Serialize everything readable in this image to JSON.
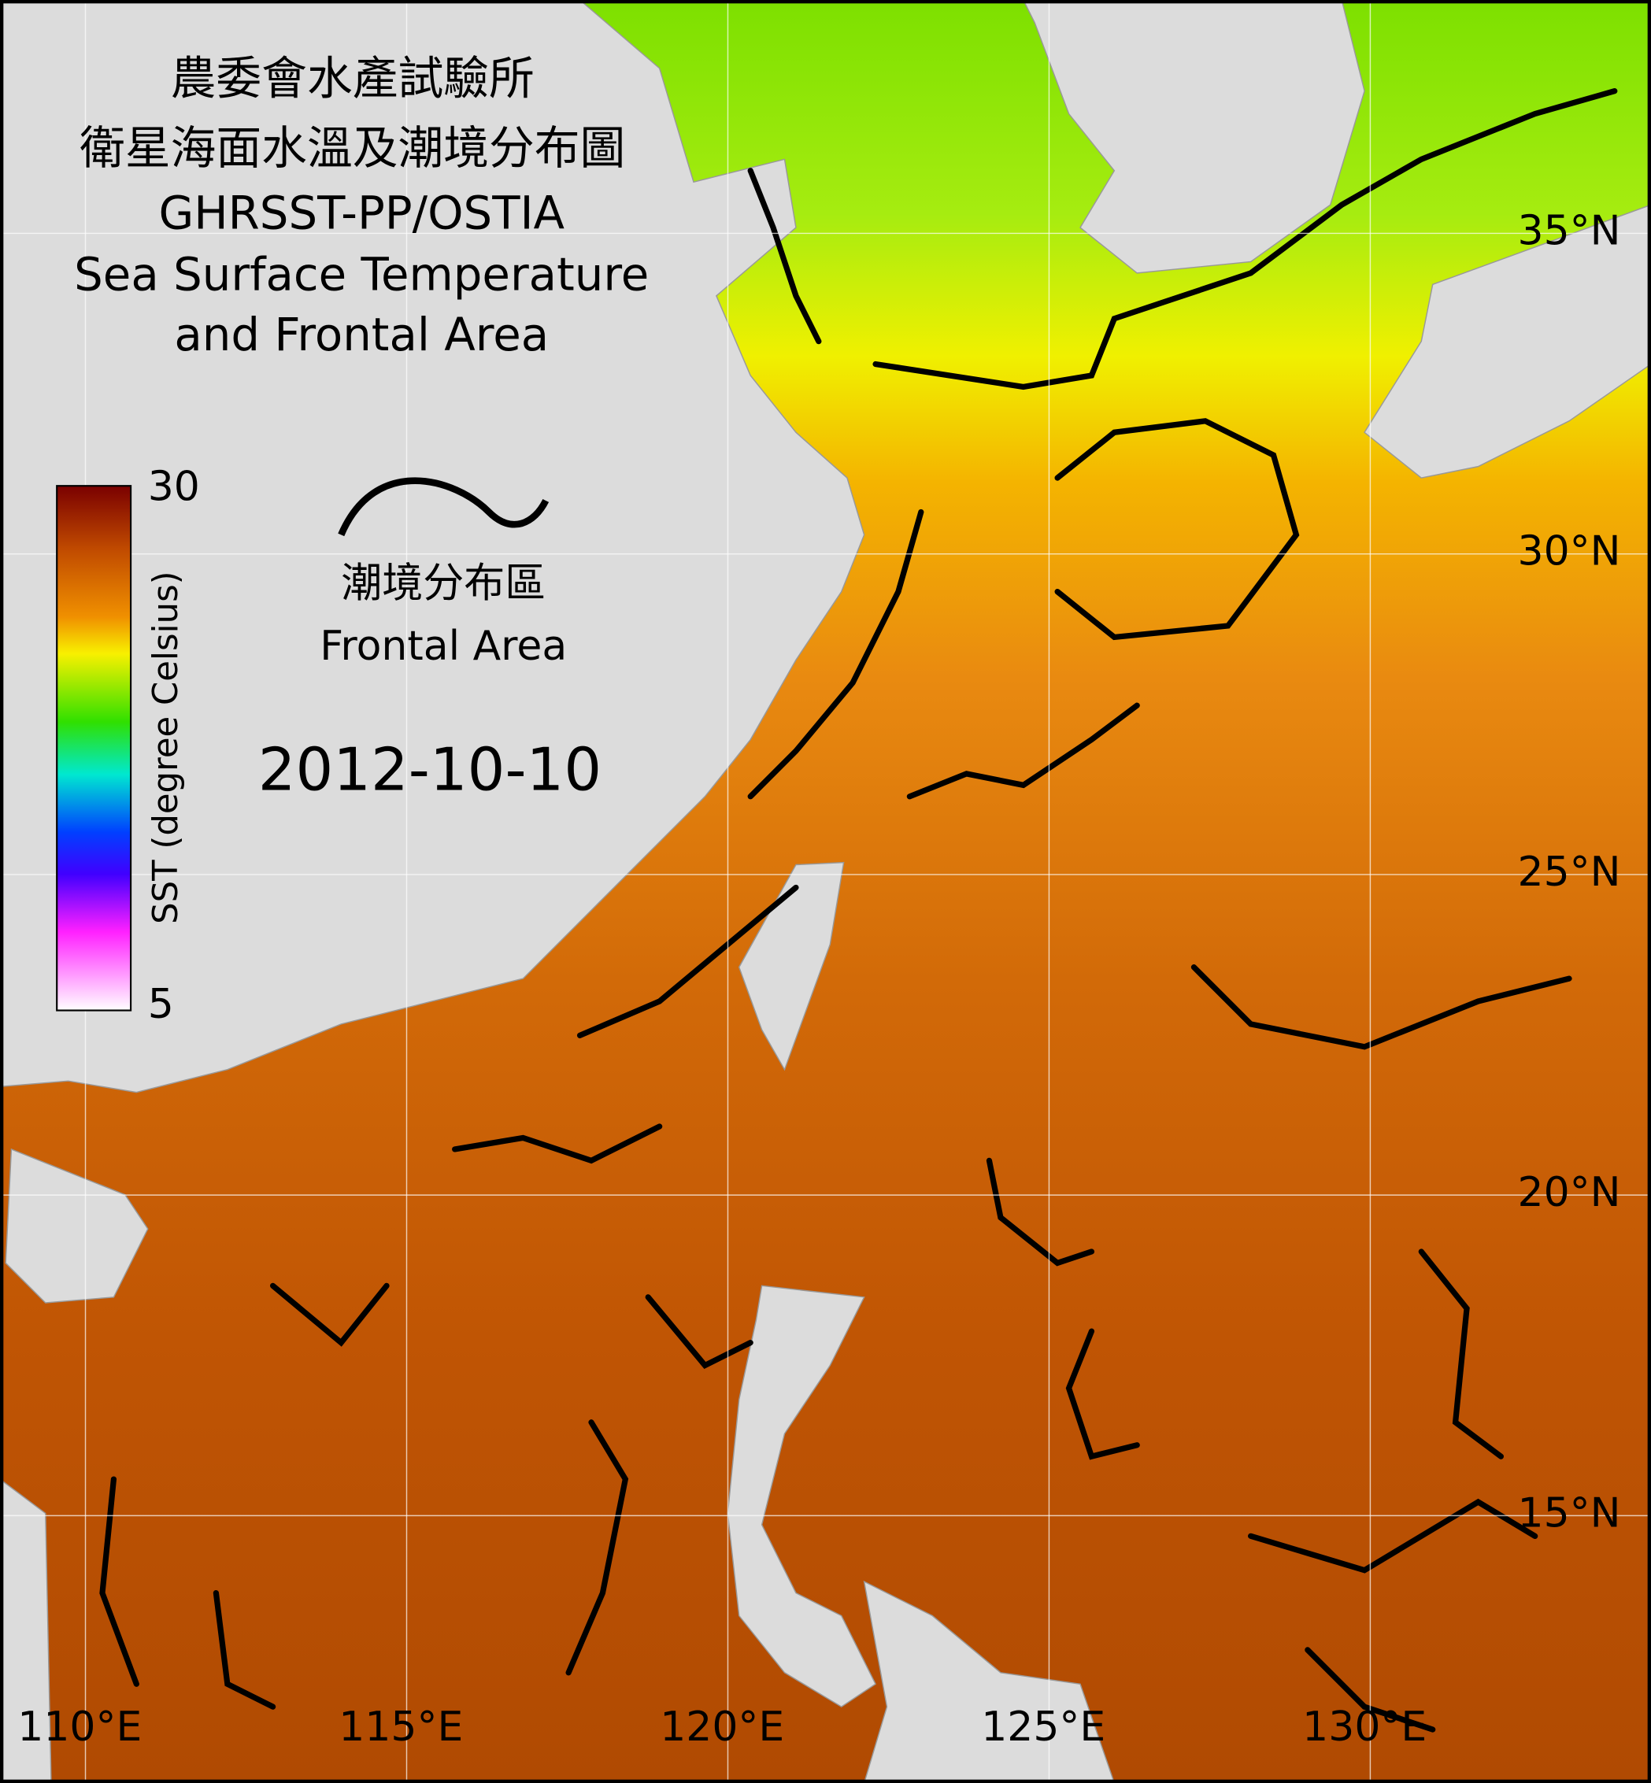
{
  "map": {
    "title": [
      "農委會水產試驗所",
      "衛星海面水溫及潮境分布圖",
      "GHRSST-PP/OSTIA",
      "Sea Surface Temperature",
      "and Frontal Area"
    ],
    "date": "2012-10-10",
    "legend": {
      "label_zh": "潮境分布區",
      "label_en": "Frontal Area"
    },
    "colorbar": {
      "label": "SST (degree Celsius)",
      "range": [
        5,
        30
      ],
      "ticks": [
        30,
        5
      ]
    },
    "lon_range": [
      108.67,
      134.37
    ],
    "lat_range": [
      10.83,
      38.64
    ],
    "lon_ticks": [
      {
        "value": 110,
        "label": "110°E"
      },
      {
        "value": 115,
        "label": "115°E"
      },
      {
        "value": 120,
        "label": "120°E"
      },
      {
        "value": 125,
        "label": "125°E"
      },
      {
        "value": 130,
        "label": "130°E"
      }
    ],
    "lat_ticks": [
      {
        "value": 35,
        "label": "35°N"
      },
      {
        "value": 30,
        "label": "30°N"
      },
      {
        "value": 25,
        "label": "25°N"
      },
      {
        "value": 20,
        "label": "20°N"
      },
      {
        "value": 15,
        "label": "15°N"
      }
    ]
  }
}
